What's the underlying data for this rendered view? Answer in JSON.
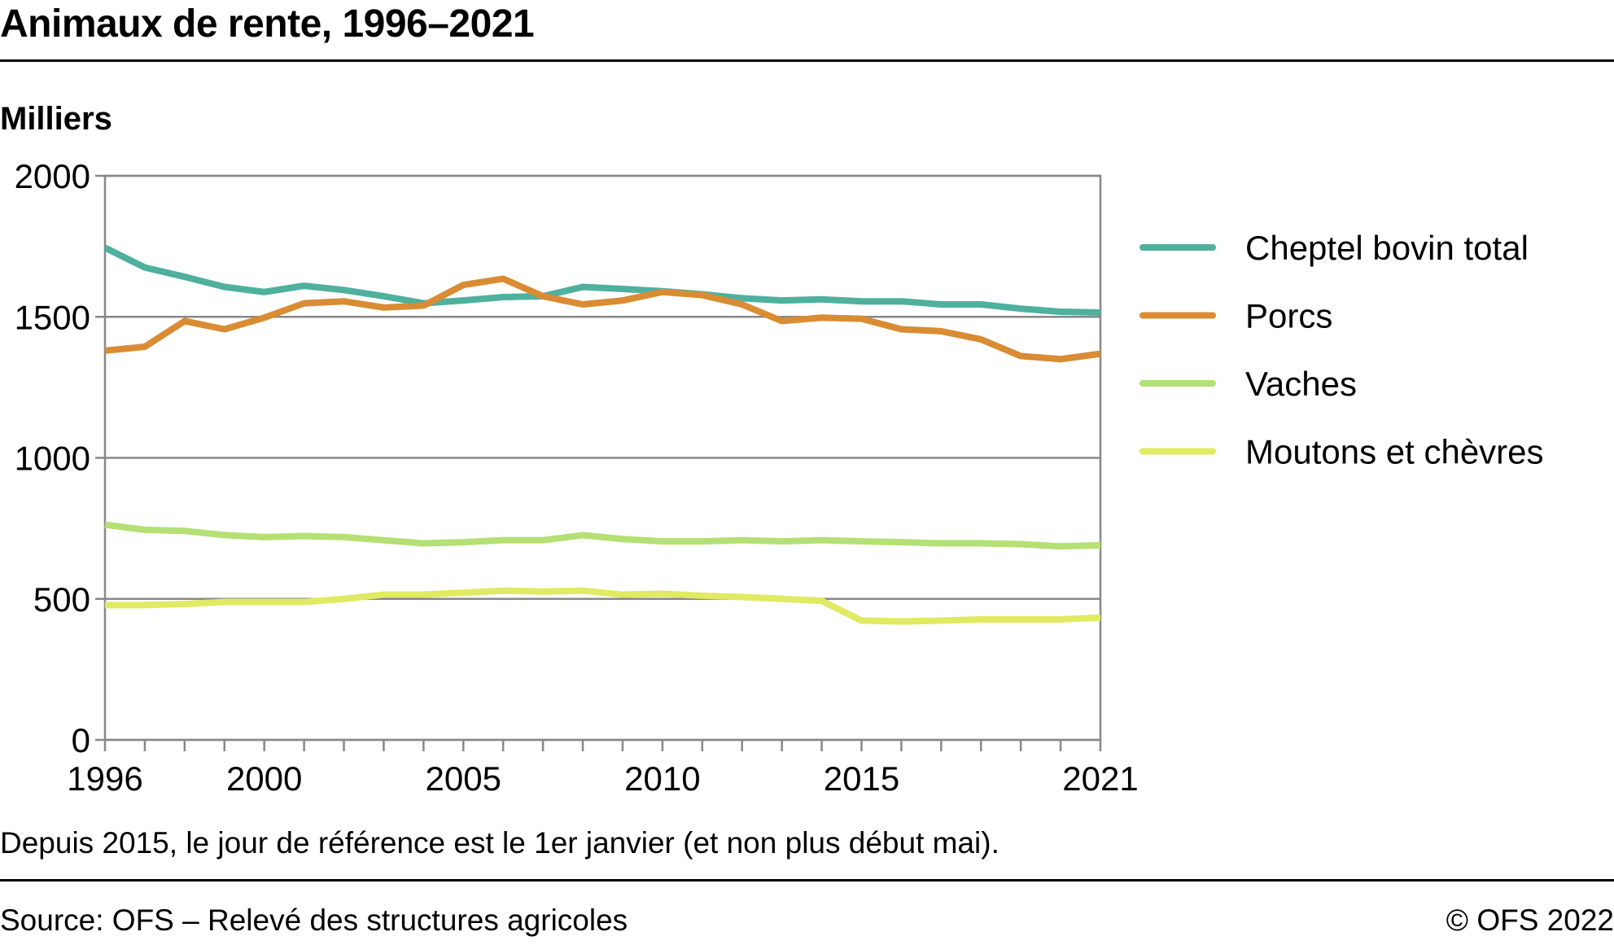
{
  "header": {
    "title": "Animaux de rente, 1996–2021"
  },
  "footer": {
    "note": "Depuis 2015, le jour de référence est le 1er janvier (et non plus début mai).",
    "source": "Source: OFS – Relevé des structures agricoles",
    "copyright": "© OFS 2022"
  },
  "chart_data": {
    "type": "line",
    "title": "Animaux de rente, 1996–2021",
    "ylabel": "Milliers",
    "xlabel": "",
    "xlim": [
      1996,
      2021
    ],
    "ylim": [
      0,
      2000
    ],
    "grid": true,
    "legend": "right",
    "x_ticks": [
      "1996",
      "2000",
      "2005",
      "2010",
      "2015",
      "2021"
    ],
    "y_ticks": [
      "0",
      "500",
      "1000",
      "1500",
      "2000"
    ],
    "x": [
      1996,
      1997,
      1998,
      1999,
      2000,
      2001,
      2002,
      2003,
      2004,
      2005,
      2006,
      2007,
      2008,
      2009,
      2010,
      2011,
      2012,
      2013,
      2014,
      2015,
      2016,
      2017,
      2018,
      2019,
      2020,
      2021
    ],
    "series": [
      {
        "name": "Cheptel bovin total",
        "color": "#4fb09e",
        "values": [
          1745,
          1675,
          1642,
          1606,
          1588,
          1610,
          1595,
          1573,
          1548,
          1558,
          1570,
          1573,
          1606,
          1599,
          1591,
          1580,
          1566,
          1558,
          1562,
          1555,
          1555,
          1544,
          1544,
          1529,
          1518,
          1515
        ]
      },
      {
        "name": "Porcs",
        "color": "#d98c33",
        "values": [
          1380,
          1394,
          1485,
          1456,
          1497,
          1548,
          1555,
          1533,
          1540,
          1613,
          1635,
          1573,
          1544,
          1558,
          1588,
          1577,
          1544,
          1485,
          1497,
          1493,
          1456,
          1449,
          1420,
          1361,
          1350,
          1369
        ]
      },
      {
        "name": "Vaches",
        "color": "#b4e074",
        "values": [
          763,
          745,
          741,
          726,
          719,
          723,
          719,
          708,
          697,
          701,
          708,
          708,
          726,
          712,
          704,
          704,
          708,
          704,
          708,
          704,
          701,
          697,
          697,
          694,
          686,
          690
        ]
      },
      {
        "name": "Moutons et chèvres",
        "color": "#e0ea62",
        "values": [
          478,
          478,
          482,
          489,
          489,
          489,
          500,
          515,
          515,
          522,
          529,
          526,
          529,
          515,
          518,
          511,
          507,
          500,
          493,
          423,
          420,
          423,
          427,
          427,
          427,
          434
        ]
      }
    ]
  }
}
